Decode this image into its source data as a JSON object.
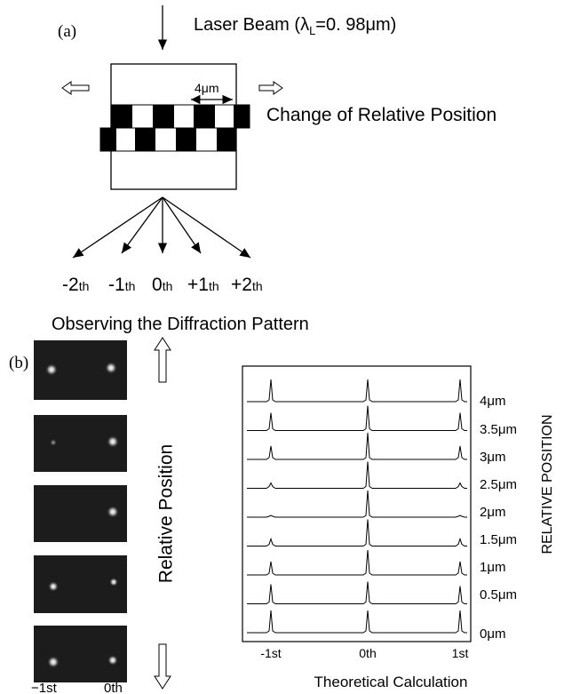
{
  "panel_a": {
    "label": "(a)",
    "beam": {
      "text": "Laser Beam (",
      "symbol": "λ",
      "subscript": "L",
      "value": "=0. 98μm)"
    },
    "period": "4μm",
    "motion": "Change of Relative Position",
    "orders": [
      {
        "number": "-2",
        "suffix": "th"
      },
      {
        "number": "-1",
        "suffix": "th"
      },
      {
        "number": "0",
        "suffix": "th"
      },
      {
        "number": "+1",
        "suffix": "th"
      },
      {
        "number": "+2",
        "suffix": "th"
      }
    ],
    "caption": "Observing the Diffraction Pattern"
  },
  "panel_b": {
    "label": "(b)",
    "experiment": {
      "axis_label": "Relative Position",
      "spot_labels": [
        "−1st",
        "0th"
      ]
    },
    "calculation": {
      "positions": [
        "4μm",
        "3.5μm",
        "3μm",
        "2.5μm",
        "2μm",
        "1.5μm",
        "1μm",
        "0.5μm",
        "0μm"
      ],
      "axis_label": "RELATIVE POSITION",
      "orders": [
        "-1st",
        "0th",
        "1st"
      ],
      "caption": "Theoretical Calculation"
    }
  }
}
